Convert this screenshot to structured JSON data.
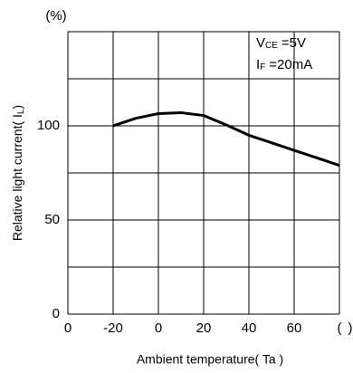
{
  "chart_data": {
    "type": "line",
    "y_unit": "(%)",
    "x_label": "Ambient temperature( Ta )",
    "y_label": {
      "main": "Relative light current( I",
      "sub": "L",
      "end": ")"
    },
    "annotations": [
      {
        "main": "V",
        "sub": "CE",
        "rest": "=5V"
      },
      {
        "main": "I",
        "sub": "F",
        "rest": "=20mA"
      }
    ],
    "x": [
      -20,
      -10,
      0,
      10,
      20,
      30,
      40,
      50,
      60,
      70,
      80
    ],
    "series": [
      {
        "color": "#000000",
        "values": [
          100,
          104,
          106.5,
          107,
          105.5,
          100.5,
          95,
          91,
          87,
          83,
          79
        ]
      }
    ],
    "xlim": [
      -40,
      80
    ],
    "xticks": [
      {
        "value": -40,
        "label": "0"
      },
      -20,
      0,
      20,
      40,
      60,
      {
        "value": 80,
        "label": "("
      }
    ],
    "x_unit_end": ")",
    "xgrid": [
      -40,
      -20,
      0,
      20,
      40,
      60,
      80
    ],
    "ylim": [
      0,
      150
    ],
    "yticks": [
      0,
      50,
      100
    ],
    "ygrid": [
      0,
      25,
      50,
      75,
      100,
      125,
      150
    ]
  }
}
